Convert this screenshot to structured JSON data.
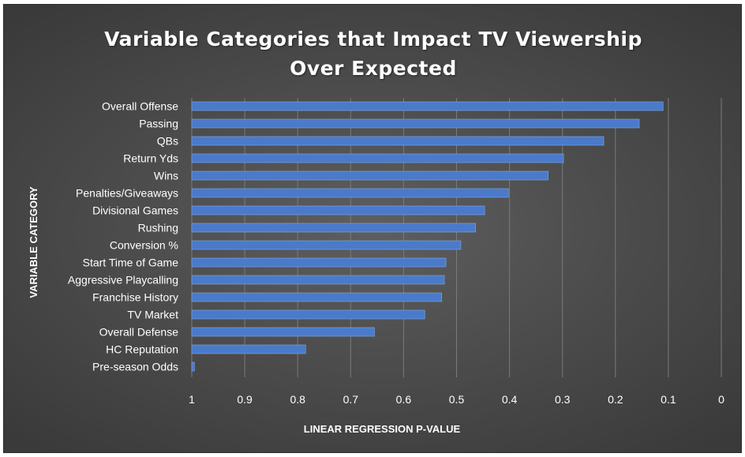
{
  "chart_data": {
    "type": "bar",
    "orientation": "horizontal",
    "title": "Variable Categories that Impact TV Viewership Over Expected",
    "title_lines": [
      "Variable Categories that Impact TV Viewership",
      "Over Expected"
    ],
    "xlabel": "LINEAR REGRESSION P-VALUE",
    "ylabel": "VARIABLE CATEGORY",
    "x_reversed": true,
    "xlim": [
      0,
      1
    ],
    "x_ticks": [
      1,
      0.9,
      0.8,
      0.7,
      0.6,
      0.5,
      0.4,
      0.3,
      0.2,
      0.1,
      0
    ],
    "x_tick_labels": [
      "1",
      "0.9",
      "0.8",
      "0.7",
      "0.6",
      "0.5",
      "0.4",
      "0.3",
      "0.2",
      "0.1",
      "0"
    ],
    "grid": "vertical",
    "legend": "none",
    "categories": [
      "Overall Offense",
      "Passing",
      "QBs",
      "Return Yds",
      "Wins",
      "Penalties/Giveaways",
      "Divisional Games",
      "Rushing",
      "Conversion %",
      "Start Time of Game",
      "Aggressive Playcalling",
      "Franchise History",
      "TV Market",
      "Overall Defense",
      "HC Reputation",
      "Pre-season Odds"
    ],
    "values": [
      0.11,
      0.155,
      0.222,
      0.298,
      0.327,
      0.402,
      0.447,
      0.464,
      0.492,
      0.52,
      0.523,
      0.528,
      0.56,
      0.655,
      0.785,
      0.995
    ],
    "bar_color": "#4a7ac9",
    "bar_edge_color": "#7fa7e6"
  }
}
